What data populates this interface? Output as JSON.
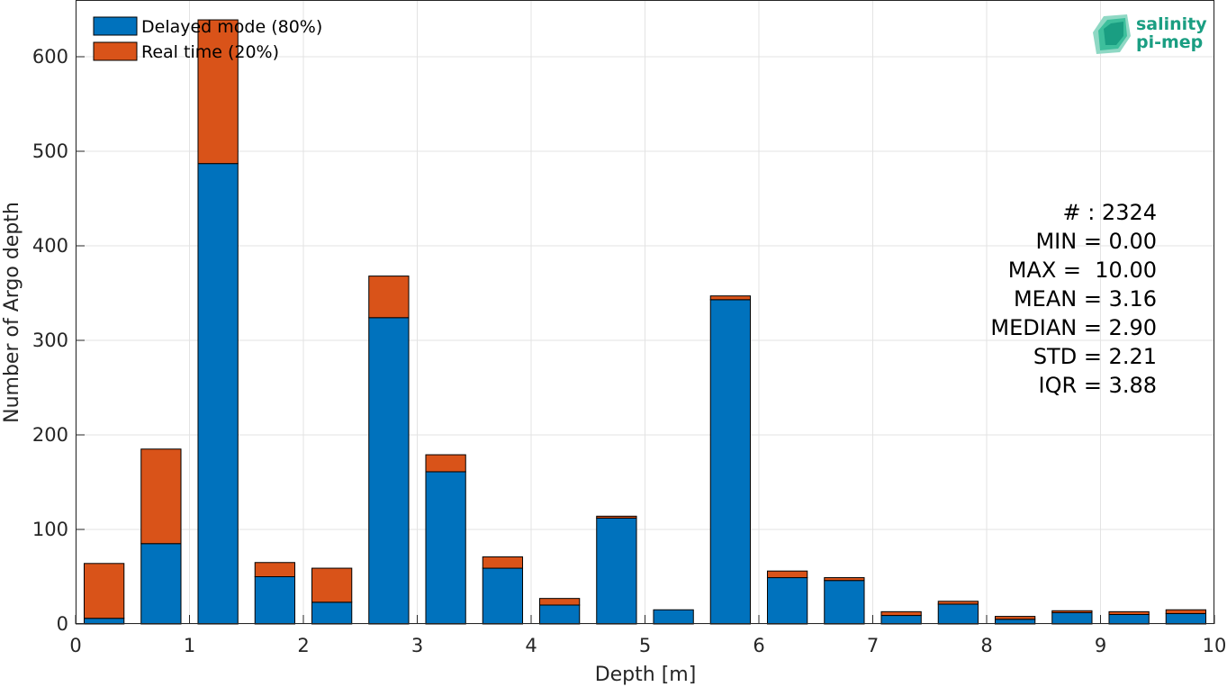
{
  "logo": {
    "line1": "salinity",
    "line2": "pi-mep"
  },
  "stats": [
    "# : 2324",
    "MIN = 0.00",
    "MAX =  10.00",
    "MEAN = 3.16",
    "MEDIAN = 2.90",
    "STD = 2.21",
    "IQR = 3.88"
  ],
  "chart_data": {
    "type": "bar",
    "stacked": true,
    "xlabel": "Depth [m]",
    "ylabel": "Number of Argo depth",
    "xlim": [
      0,
      10
    ],
    "ylim": [
      0,
      660
    ],
    "xticks": [
      "0",
      "1",
      "2",
      "3",
      "4",
      "5",
      "6",
      "7",
      "8",
      "9",
      "10"
    ],
    "yticks": [
      "0",
      "100",
      "200",
      "300",
      "400",
      "500",
      "600"
    ],
    "grid": true,
    "legend_position": "top-left",
    "bin_centers": [
      0.25,
      0.75,
      1.25,
      1.75,
      2.25,
      2.75,
      3.25,
      3.75,
      4.25,
      4.75,
      5.25,
      5.75,
      6.25,
      6.75,
      7.25,
      7.75,
      8.25,
      8.75,
      9.25,
      9.75
    ],
    "bin_width": 0.35,
    "series": [
      {
        "name": "Delayed mode (80%)",
        "color": "#0072bd",
        "values": [
          6,
          85,
          487,
          50,
          23,
          324,
          161,
          59,
          20,
          112,
          15,
          343,
          49,
          46,
          9,
          21,
          5,
          12,
          10,
          11
        ]
      },
      {
        "name": "Real time (20%)",
        "color": "#d95319",
        "values": [
          58,
          100,
          152,
          15,
          36,
          44,
          18,
          12,
          7,
          2,
          0,
          4,
          7,
          3,
          4,
          3,
          3,
          2,
          3,
          4
        ]
      }
    ]
  }
}
